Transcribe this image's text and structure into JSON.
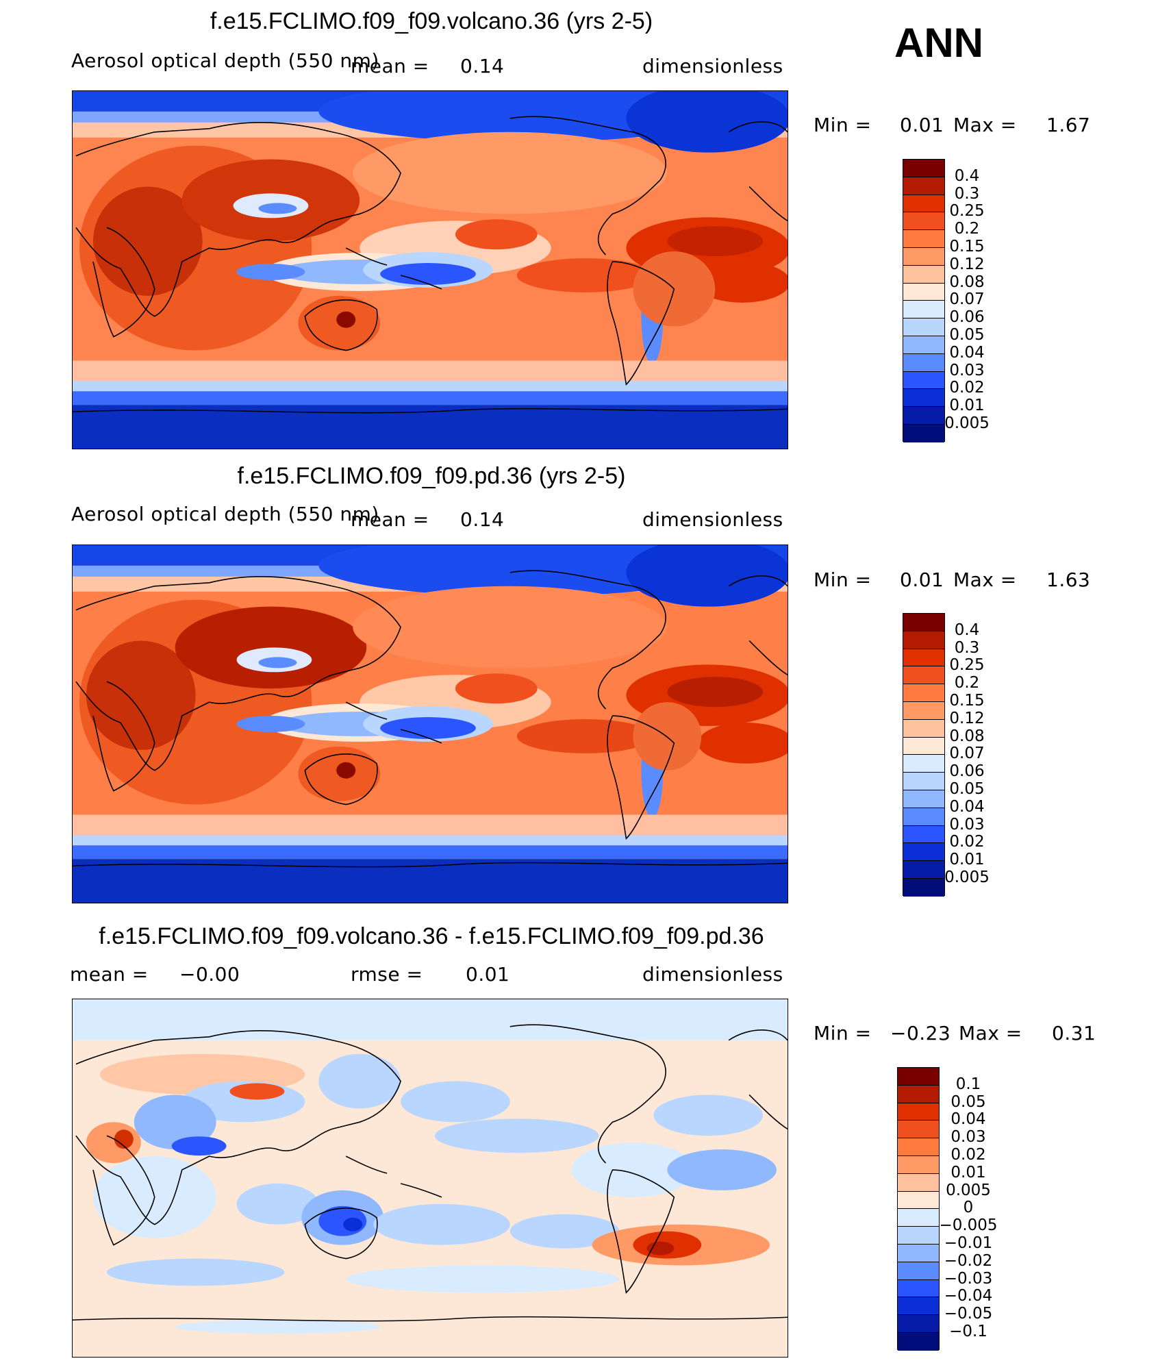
{
  "season": "ANN",
  "panels": [
    {
      "title": "f.e15.FCLIMO.f09_f09.volcano.36 (yrs 2-5)",
      "left_label": "Aerosol optical depth (550 nm)",
      "mid_label": "mean =",
      "mid_value": "0.14",
      "units": "dimensionless",
      "min_label": "Min =",
      "min_value": "0.01",
      "max_label": "Max =",
      "max_value": "1.67",
      "colorbar": {
        "labels": [
          "0.4",
          "0.3",
          "0.25",
          "0.2",
          "0.15",
          "0.12",
          "0.08",
          "0.07",
          "0.06",
          "0.05",
          "0.04",
          "0.03",
          "0.02",
          "0.01",
          "0.005"
        ],
        "colors": [
          "#7a0000",
          "#b31a00",
          "#e03000",
          "#f0501e",
          "#ff7a3d",
          "#ff9a66",
          "#ffc29e",
          "#ffe8d6",
          "#d9ecff",
          "#b8d6ff",
          "#8fb8ff",
          "#5b8cff",
          "#2a55ff",
          "#0a2fd6",
          "#061ca8",
          "#000d7a"
        ]
      }
    },
    {
      "title": "f.e15.FCLIMO.f09_f09.pd.36 (yrs 2-5)",
      "left_label": "Aerosol optical depth (550 nm)",
      "mid_label": "mean =",
      "mid_value": "0.14",
      "units": "dimensionless",
      "min_label": "Min =",
      "min_value": "0.01",
      "max_label": "Max =",
      "max_value": "1.63",
      "colorbar": {
        "labels": [
          "0.4",
          "0.3",
          "0.25",
          "0.2",
          "0.15",
          "0.12",
          "0.08",
          "0.07",
          "0.06",
          "0.05",
          "0.04",
          "0.03",
          "0.02",
          "0.01",
          "0.005"
        ],
        "colors": [
          "#7a0000",
          "#b31a00",
          "#e03000",
          "#f0501e",
          "#ff7a3d",
          "#ff9a66",
          "#ffc29e",
          "#ffe8d6",
          "#d9ecff",
          "#b8d6ff",
          "#8fb8ff",
          "#5b8cff",
          "#2a55ff",
          "#0a2fd6",
          "#061ca8",
          "#000d7a"
        ]
      }
    },
    {
      "title": "f.e15.FCLIMO.f09_f09.volcano.36 - f.e15.FCLIMO.f09_f09.pd.36",
      "left_label": "mean =",
      "left_value": "−0.00",
      "mid_label": "rmse =",
      "mid_value": "0.01",
      "units": "dimensionless",
      "min_label": "Min =",
      "min_value": "−0.23",
      "max_label": "Max =",
      "max_value": "0.31",
      "colorbar": {
        "labels": [
          "0.1",
          "0.05",
          "0.04",
          "0.03",
          "0.02",
          "0.01",
          "0.005",
          "0",
          "−0.005",
          "−0.01",
          "−0.02",
          "−0.03",
          "−0.04",
          "−0.05",
          "−0.1"
        ],
        "colors": [
          "#7a0000",
          "#b31a00",
          "#e03000",
          "#f0501e",
          "#ff7a3d",
          "#ff9a66",
          "#ffc29e",
          "#ffe8d6",
          "#d9ecff",
          "#b8d6ff",
          "#8fb8ff",
          "#5b8cff",
          "#2a55ff",
          "#0a2fd6",
          "#061ca8",
          "#000d7a"
        ]
      }
    }
  ]
}
